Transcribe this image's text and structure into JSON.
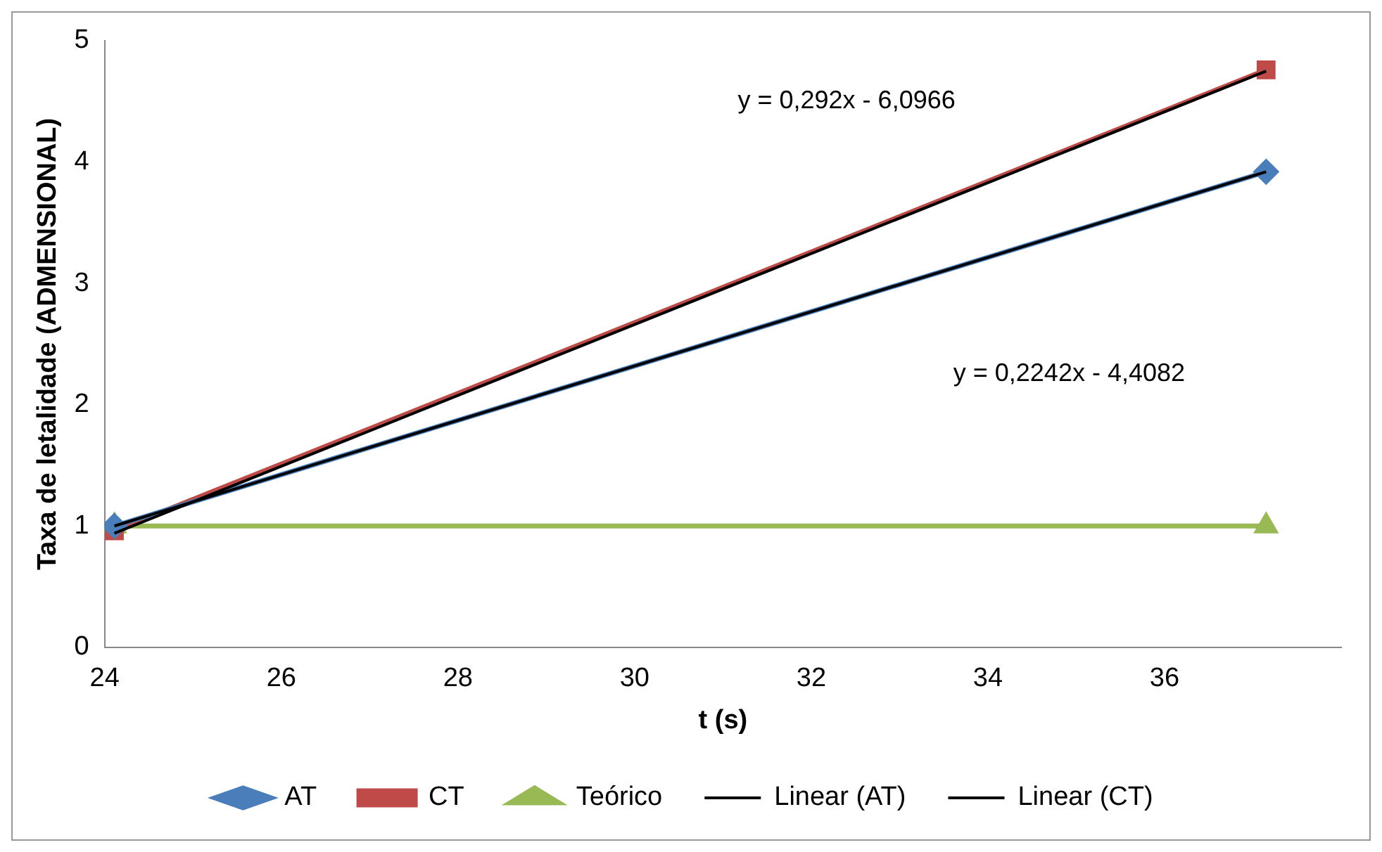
{
  "chart_data": {
    "type": "line",
    "xlabel": "t (s)",
    "ylabel": "Taxa de letalidade (ADMENSIONAL)",
    "x": [
      24.11,
      37.15
    ],
    "series": [
      {
        "name": "AT",
        "color": "#4a7ebb",
        "values": [
          1.0,
          3.92
        ],
        "marker": "diamond"
      },
      {
        "name": "CT",
        "color": "#be4b48",
        "values": [
          0.96,
          4.76
        ],
        "marker": "square"
      },
      {
        "name": "Teórico",
        "color": "#98b954",
        "values": [
          1.0,
          1.0
        ],
        "marker": "triangle"
      },
      {
        "name": "Linear (AT)",
        "color": "#000000",
        "values": [
          1.0,
          3.92
        ],
        "marker": "none"
      },
      {
        "name": "Linear (CT)",
        "color": "#000000",
        "values": [
          0.94,
          4.75
        ],
        "marker": "none"
      }
    ],
    "xlim": [
      24,
      38
    ],
    "xticks": [
      24,
      26,
      28,
      30,
      32,
      34,
      36
    ],
    "ylim": [
      0,
      5
    ],
    "yticks": [
      0,
      1,
      2,
      3,
      4,
      5
    ],
    "grid": false,
    "legend": "bottom",
    "annotations": [
      "y = 0,292x - 6,0966",
      "y = 0,2242x - 4,4082"
    ]
  }
}
